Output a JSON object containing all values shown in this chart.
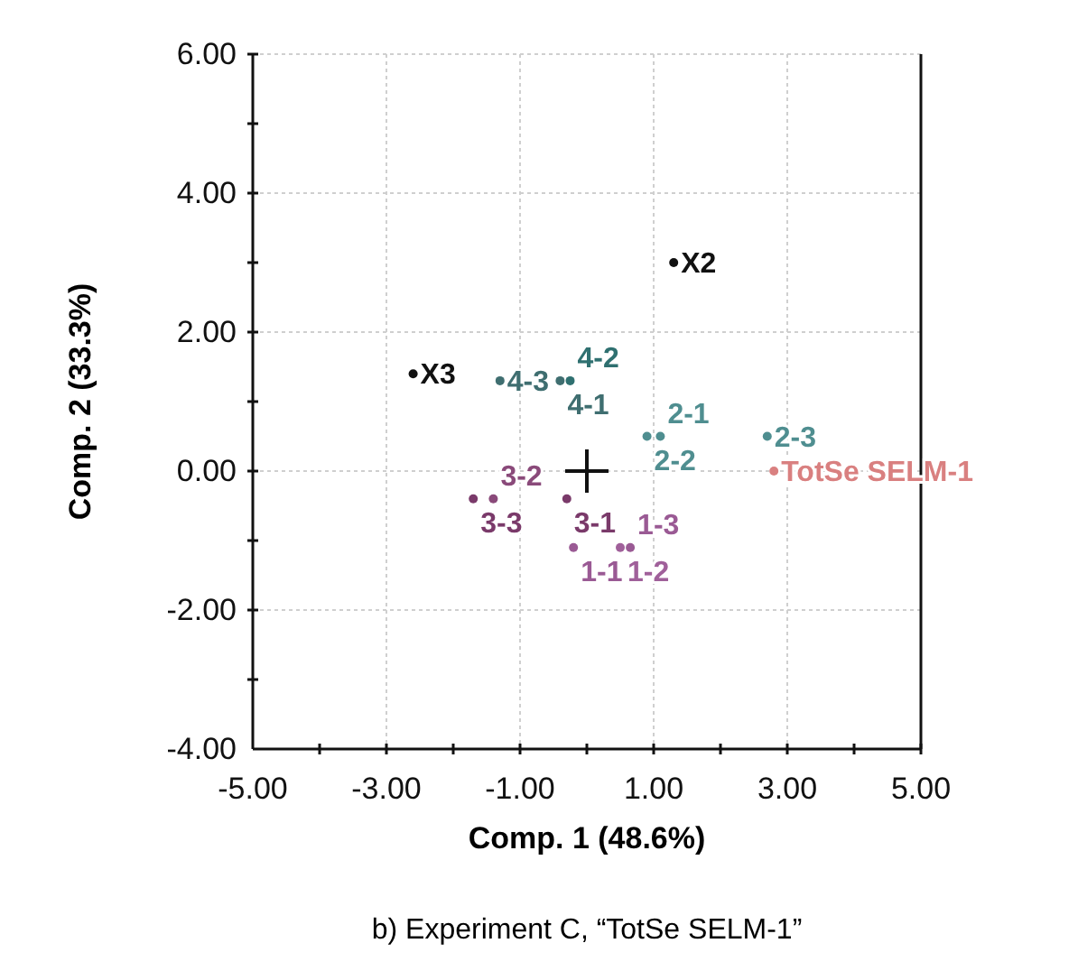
{
  "chart_data": {
    "type": "scatter",
    "title": "b) Experiment C, “TotSe SELM-1”",
    "xlabel": "Comp. 1 (48.6%)",
    "ylabel": "Comp. 2 (33.3%)",
    "xlim": [
      -5,
      5
    ],
    "ylim": [
      -4,
      6
    ],
    "xticks": [
      {
        "value": -5,
        "label": "-5.00"
      },
      {
        "value": -4,
        "label": null
      },
      {
        "value": -3,
        "label": "-3.00"
      },
      {
        "value": -2,
        "label": null
      },
      {
        "value": -1,
        "label": "-1.00"
      },
      {
        "value": 0,
        "label": null
      },
      {
        "value": 1,
        "label": "1.00"
      },
      {
        "value": 2,
        "label": null
      },
      {
        "value": 3,
        "label": "3.00"
      },
      {
        "value": 4,
        "label": null
      },
      {
        "value": 5,
        "label": "5.00"
      }
    ],
    "yticks": [
      {
        "value": -4,
        "label": "-4.00"
      },
      {
        "value": -3,
        "label": null
      },
      {
        "value": -2,
        "label": "-2.00"
      },
      {
        "value": -1,
        "label": null
      },
      {
        "value": 0,
        "label": "0.00"
      },
      {
        "value": 1,
        "label": null
      },
      {
        "value": 2,
        "label": "2.00"
      },
      {
        "value": 3,
        "label": null
      },
      {
        "value": 4,
        "label": "4.00"
      },
      {
        "value": 5,
        "label": null
      },
      {
        "value": 6,
        "label": "6.00"
      }
    ],
    "grid": true,
    "marker": "circle",
    "series": [
      {
        "name": "X2",
        "color": "#111111",
        "x": [
          1.3
        ],
        "values": [
          3.0
        ]
      },
      {
        "name": "X3",
        "color": "#111111",
        "x": [
          -2.6
        ],
        "values": [
          1.4
        ]
      },
      {
        "name": "4-3",
        "color": "#3f6e70",
        "x": [
          -1.3
        ],
        "values": [
          1.3
        ]
      },
      {
        "name": "4-1",
        "color": "#3f6e70",
        "x": [
          -0.4
        ],
        "values": [
          1.3
        ]
      },
      {
        "name": "4-2",
        "color": "#2f7070",
        "x": [
          -0.25
        ],
        "values": [
          1.3
        ]
      },
      {
        "name": "2-2",
        "color": "#4f8e90",
        "x": [
          0.9
        ],
        "values": [
          0.5
        ]
      },
      {
        "name": "2-1",
        "color": "#4f8e90",
        "x": [
          1.1
        ],
        "values": [
          0.5
        ]
      },
      {
        "name": "2-3",
        "color": "#4f8e90",
        "x": [
          2.7
        ],
        "values": [
          0.5
        ]
      },
      {
        "name": "TotSe SELM-1",
        "color": "#d98080",
        "x": [
          2.8
        ],
        "values": [
          0.0
        ]
      },
      {
        "name": "3-3",
        "color": "#7a3a6a",
        "x": [
          -1.7
        ],
        "values": [
          -0.4
        ]
      },
      {
        "name": "3-2",
        "color": "#8a4a7a",
        "x": [
          -1.4
        ],
        "values": [
          -0.4
        ]
      },
      {
        "name": "3-1",
        "color": "#7a3a6a",
        "x": [
          -0.3
        ],
        "values": [
          -0.4
        ]
      },
      {
        "name": "1-1",
        "color": "#9a5a94",
        "x": [
          -0.2
        ],
        "values": [
          -1.1
        ]
      },
      {
        "name": "1-2",
        "color": "#a0609a",
        "x": [
          0.5
        ],
        "values": [
          -1.1
        ]
      },
      {
        "name": "1-3",
        "color": "#9a5a94",
        "x": [
          0.65
        ],
        "values": [
          -1.1
        ]
      },
      {
        "color": "#111111",
        "marker": "cross",
        "x": [
          0
        ],
        "values": [
          0
        ]
      }
    ]
  }
}
